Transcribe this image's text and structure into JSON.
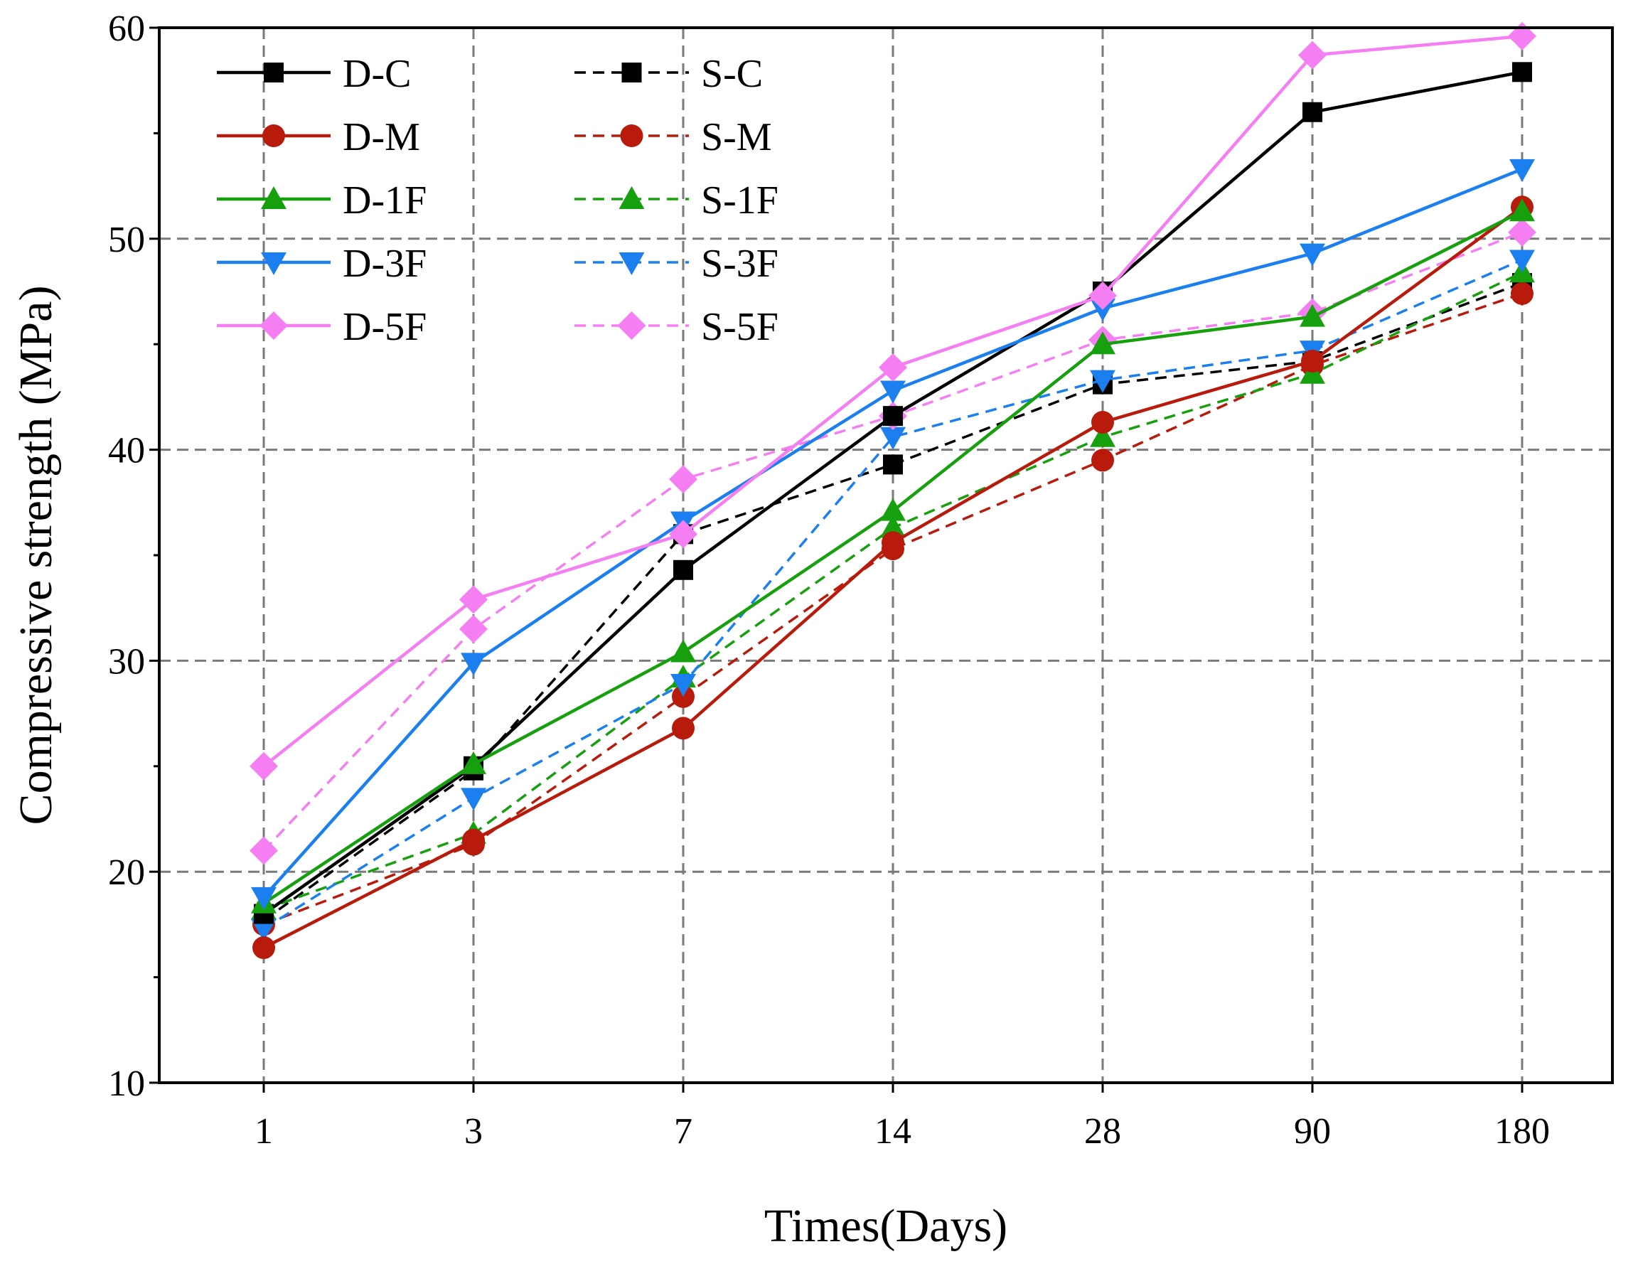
{
  "chart_data": {
    "type": "line",
    "xlabel": "Times(Days)",
    "ylabel": "Compressive strength (MPa)",
    "categories": [
      "1",
      "3",
      "7",
      "14",
      "28",
      "90",
      "180"
    ],
    "ylim": [
      10,
      60
    ],
    "yticks": [
      10,
      20,
      30,
      40,
      50,
      60
    ],
    "grid": true,
    "legend_position": "top-left",
    "series": [
      {
        "name": "D-C",
        "style": "solid",
        "marker": "square",
        "color": "#000000",
        "values": [
          18.0,
          25.0,
          34.3,
          41.6,
          47.5,
          56.0,
          57.9
        ]
      },
      {
        "name": "D-M",
        "style": "solid",
        "marker": "circle",
        "color": "#b81b0b",
        "values": [
          16.4,
          21.5,
          26.8,
          35.6,
          41.3,
          44.2,
          51.5
        ]
      },
      {
        "name": "D-1F",
        "style": "solid",
        "marker": "triangle-up",
        "color": "#17a00e",
        "values": [
          18.5,
          25.1,
          30.4,
          37.1,
          45.0,
          46.3,
          51.3
        ]
      },
      {
        "name": "D-3F",
        "style": "solid",
        "marker": "triangle-down",
        "color": "#1b7ff0",
        "values": [
          18.8,
          29.9,
          36.6,
          42.8,
          46.7,
          49.3,
          53.3
        ]
      },
      {
        "name": "D-5F",
        "style": "solid",
        "marker": "diamond",
        "color": "#f57ff2",
        "values": [
          25.0,
          32.9,
          36.0,
          43.9,
          47.3,
          58.7,
          59.6
        ]
      },
      {
        "name": "S-C",
        "style": "dashed",
        "marker": "square",
        "color": "#000000",
        "values": [
          17.7,
          24.8,
          36.0,
          39.3,
          43.1,
          44.2,
          47.9
        ]
      },
      {
        "name": "S-M",
        "style": "dashed",
        "marker": "circle",
        "color": "#b81b0b",
        "values": [
          17.5,
          21.3,
          28.3,
          35.3,
          39.5,
          44.0,
          47.4
        ]
      },
      {
        "name": "S-1F",
        "style": "dashed",
        "marker": "triangle-up",
        "color": "#17a00e",
        "values": [
          18.2,
          21.8,
          29.2,
          36.3,
          40.6,
          43.6,
          48.4
        ]
      },
      {
        "name": "S-3F",
        "style": "dashed",
        "marker": "triangle-down",
        "color": "#1b7ff0",
        "values": [
          17.3,
          23.5,
          28.9,
          40.6,
          43.3,
          44.7,
          49.0
        ]
      },
      {
        "name": "S-5F",
        "style": "dashed",
        "marker": "diamond",
        "color": "#f57ff2",
        "values": [
          21.0,
          31.5,
          38.6,
          41.6,
          45.2,
          46.5,
          50.3
        ]
      }
    ]
  }
}
